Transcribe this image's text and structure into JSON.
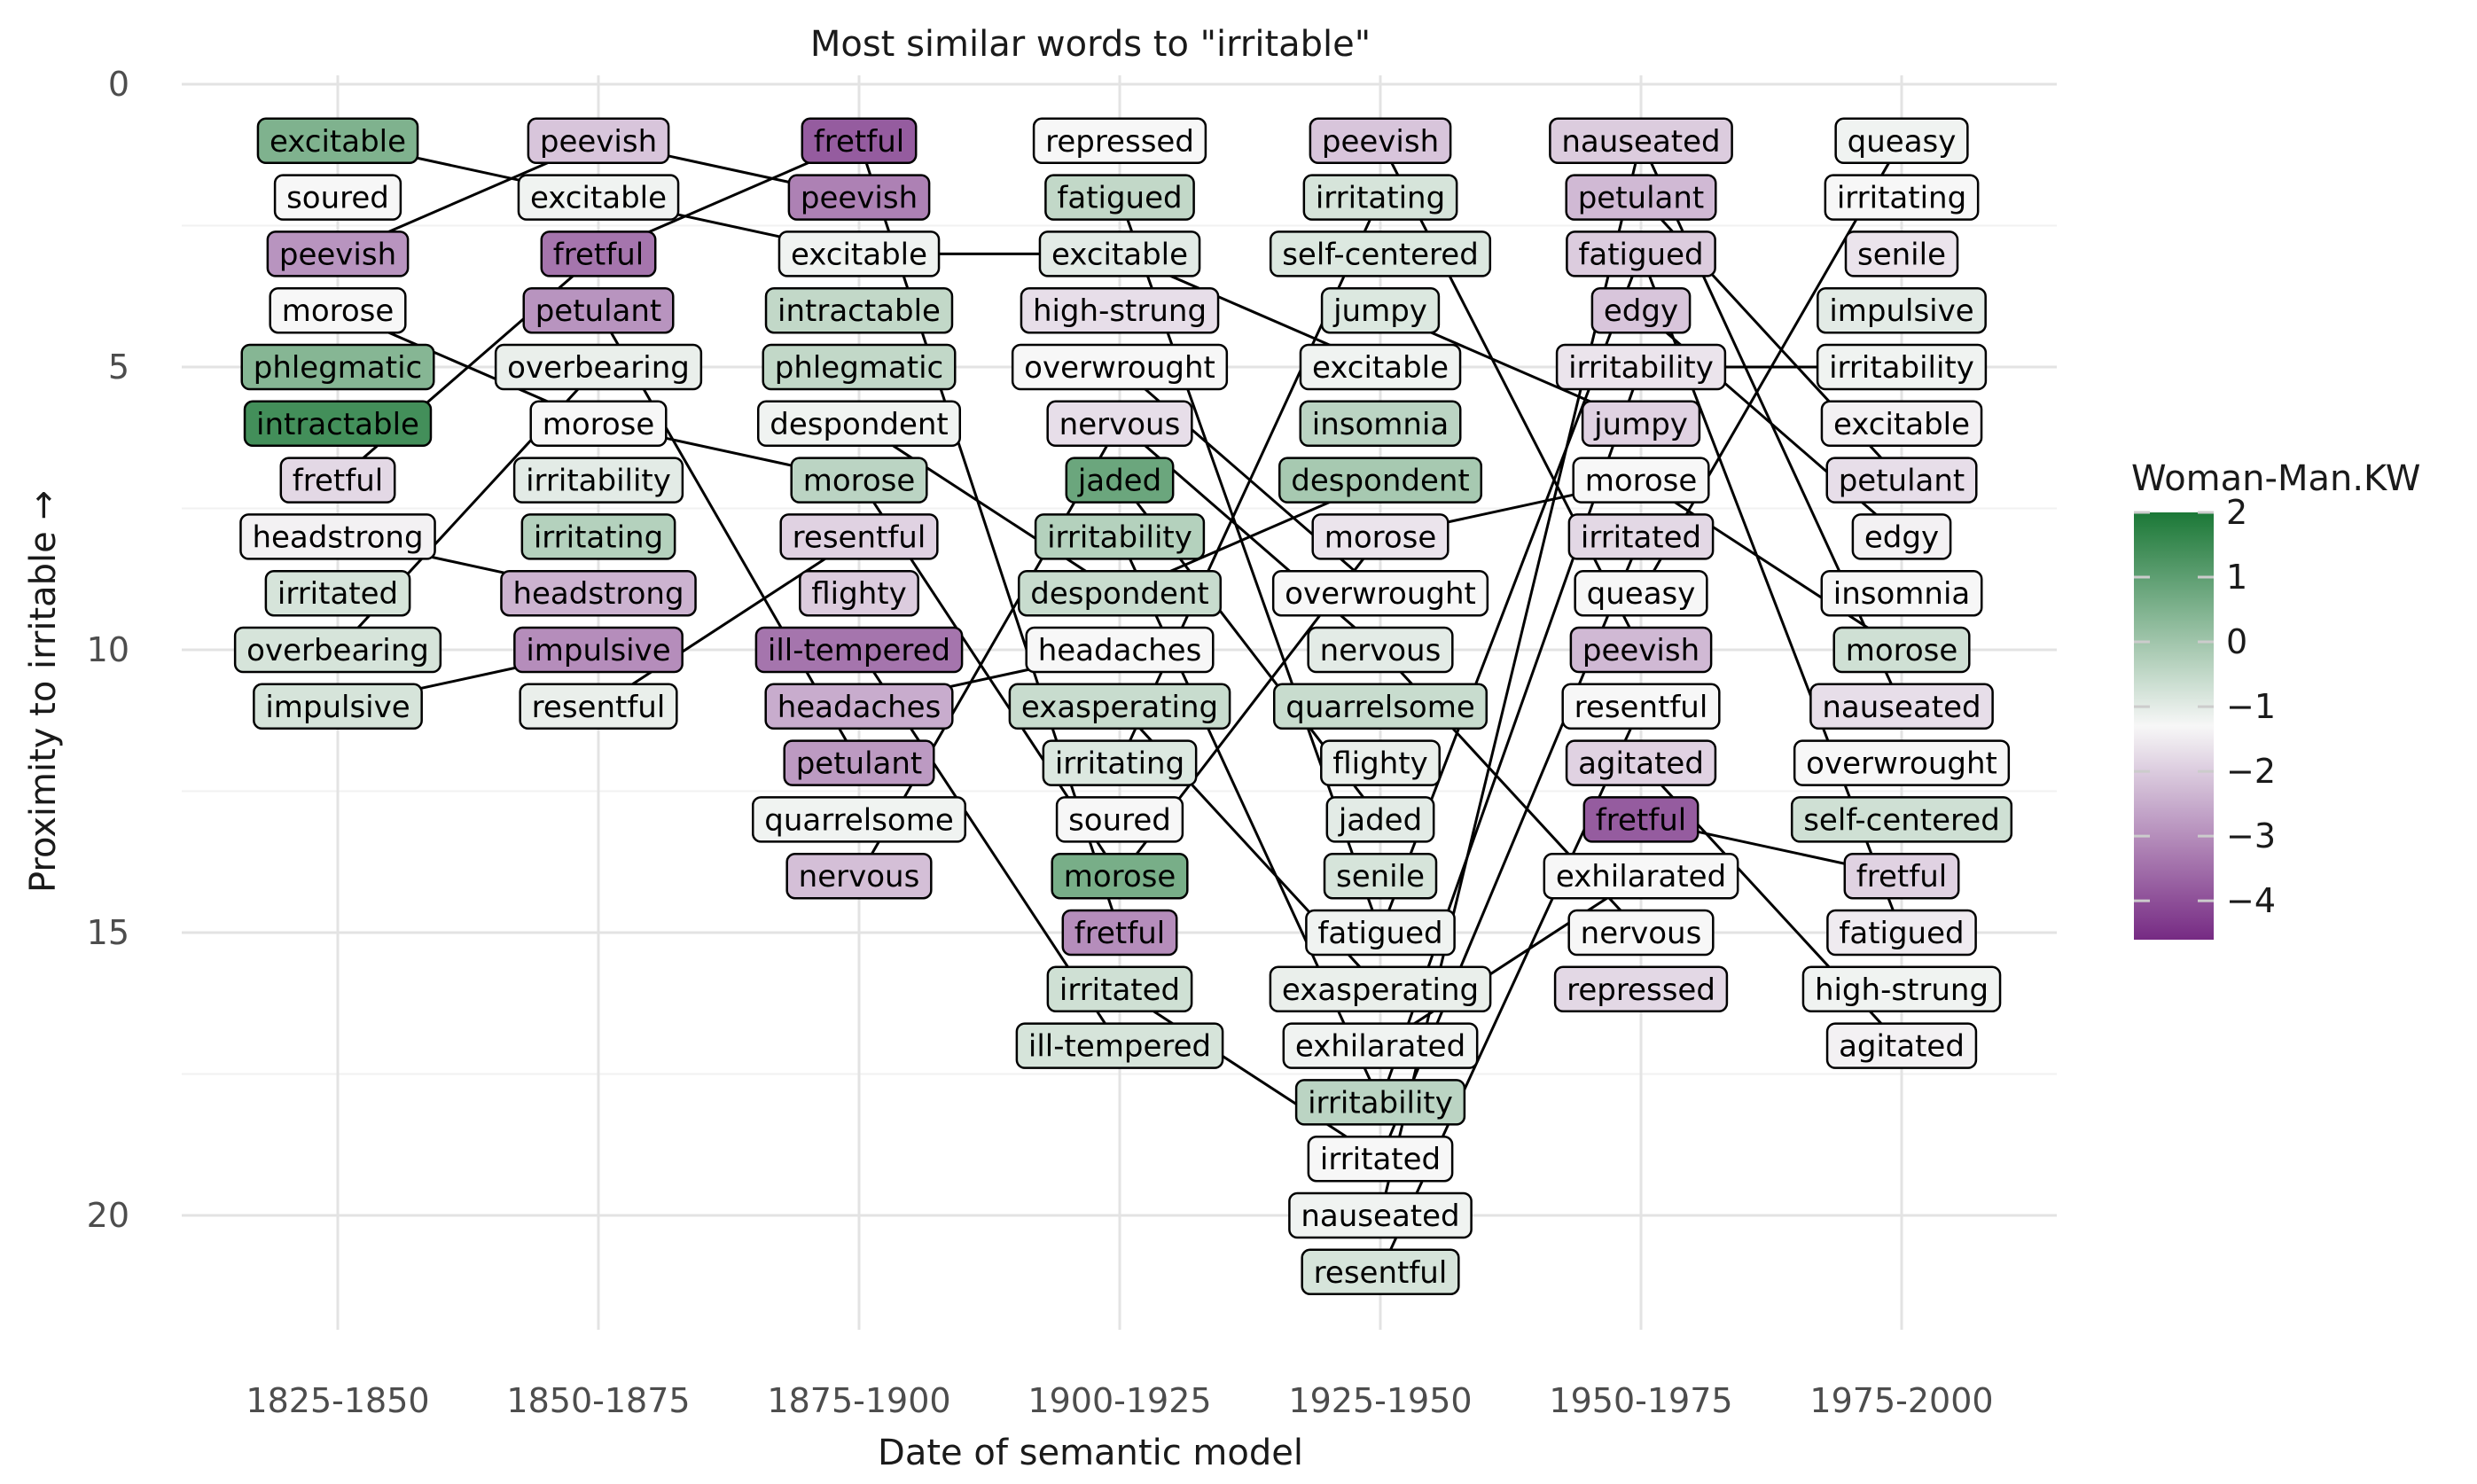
{
  "chart_data": {
    "type": "bump",
    "title": "Most similar words to \"irritable\"",
    "xlabel": "Date of semantic model",
    "ylabel": "Proximity to irritable →",
    "ylim": [
      0,
      22
    ],
    "yticks": [
      0,
      5,
      10,
      15,
      20
    ],
    "grid": true,
    "categories": [
      "1825-1850",
      "1850-1875",
      "1875-1900",
      "1900-1925",
      "1925-1950",
      "1950-1975",
      "1975-2000"
    ],
    "color_scale": {
      "title": "Woman-Man.KW",
      "min": -4.6,
      "max": 2,
      "ticks": [
        "2",
        "1",
        "0",
        "−1",
        "−2",
        "−3",
        "−4"
      ],
      "tick_values": [
        2,
        1,
        0,
        -1,
        -2,
        -3,
        -4
      ],
      "low_color": "#762a83",
      "mid_color": "#f7f7f7",
      "high_color": "#1b7837",
      "midpoint": -1.3,
      "legend_position": "right"
    },
    "columns": [
      {
        "period": "1825-1850",
        "words": [
          {
            "word": "excitable",
            "rank": 1,
            "value": 0.5
          },
          {
            "word": "soured",
            "rank": 2,
            "value": -1.3
          },
          {
            "word": "peevish",
            "rank": 3,
            "value": -2.9
          },
          {
            "word": "morose",
            "rank": 4,
            "value": -1.3
          },
          {
            "word": "phlegmatic",
            "rank": 5,
            "value": 0.4
          },
          {
            "word": "intractable",
            "rank": 6,
            "value": 1.4
          },
          {
            "word": "fretful",
            "rank": 7,
            "value": -1.8
          },
          {
            "word": "headstrong",
            "rank": 8,
            "value": -1.4
          },
          {
            "word": "irritated",
            "rank": 9,
            "value": -0.8
          },
          {
            "word": "overbearing",
            "rank": 10,
            "value": -0.8
          },
          {
            "word": "impulsive",
            "rank": 11,
            "value": -0.8
          }
        ]
      },
      {
        "period": "1850-1875",
        "words": [
          {
            "word": "peevish",
            "rank": 1,
            "value": -2.1
          },
          {
            "word": "excitable",
            "rank": 2,
            "value": -1.2
          },
          {
            "word": "fretful",
            "rank": 3,
            "value": -3.4
          },
          {
            "word": "petulant",
            "rank": 4,
            "value": -2.9
          },
          {
            "word": "overbearing",
            "rank": 5,
            "value": -1.1
          },
          {
            "word": "morose",
            "rank": 6,
            "value": -1.3
          },
          {
            "word": "irritability",
            "rank": 7,
            "value": -1.0
          },
          {
            "word": "irritating",
            "rank": 8,
            "value": -0.3
          },
          {
            "word": "headstrong",
            "rank": 9,
            "value": -2.4
          },
          {
            "word": "impulsive",
            "rank": 10,
            "value": -3.0
          },
          {
            "word": "resentful",
            "rank": 11,
            "value": -1.1
          }
        ]
      },
      {
        "period": "1875-1900",
        "words": [
          {
            "word": "fretful",
            "rank": 1,
            "value": -3.8
          },
          {
            "word": "peevish",
            "rank": 2,
            "value": -3.2
          },
          {
            "word": "excitable",
            "rank": 3,
            "value": -1.2
          },
          {
            "word": "intractable",
            "rank": 4,
            "value": -0.5
          },
          {
            "word": "phlegmatic",
            "rank": 5,
            "value": -0.5
          },
          {
            "word": "despondent",
            "rank": 6,
            "value": -1.2
          },
          {
            "word": "morose",
            "rank": 7,
            "value": -0.4
          },
          {
            "word": "resentful",
            "rank": 8,
            "value": -1.9
          },
          {
            "word": "flighty",
            "rank": 9,
            "value": -2.0
          },
          {
            "word": "ill-tempered",
            "rank": 10,
            "value": -3.4
          },
          {
            "word": "headaches",
            "rank": 11,
            "value": -2.5
          },
          {
            "word": "petulant",
            "rank": 12,
            "value": -2.8
          },
          {
            "word": "quarrelsome",
            "rank": 13,
            "value": -1.2
          },
          {
            "word": "nervous",
            "rank": 14,
            "value": -2.2
          }
        ]
      },
      {
        "period": "1900-1925",
        "words": [
          {
            "word": "repressed",
            "rank": 1,
            "value": -1.3
          },
          {
            "word": "fatigued",
            "rank": 2,
            "value": -0.5
          },
          {
            "word": "excitable",
            "rank": 3,
            "value": -1.0
          },
          {
            "word": "high-strung",
            "rank": 4,
            "value": -1.7
          },
          {
            "word": "overwrought",
            "rank": 5,
            "value": -1.3
          },
          {
            "word": "nervous",
            "rank": 6,
            "value": -1.7
          },
          {
            "word": "jaded",
            "rank": 7,
            "value": 0.8
          },
          {
            "word": "irritability",
            "rank": 8,
            "value": -0.3
          },
          {
            "word": "despondent",
            "rank": 9,
            "value": -0.6
          },
          {
            "word": "headaches",
            "rank": 10,
            "value": -1.3
          },
          {
            "word": "exasperating",
            "rank": 11,
            "value": -0.6
          },
          {
            "word": "irritating",
            "rank": 12,
            "value": -0.9
          },
          {
            "word": "soured",
            "rank": 13,
            "value": -1.3
          },
          {
            "word": "morose",
            "rank": 14,
            "value": 0.6
          },
          {
            "word": "fretful",
            "rank": 15,
            "value": -3.0
          },
          {
            "word": "irritated",
            "rank": 16,
            "value": -0.7
          },
          {
            "word": "ill-tempered",
            "rank": 17,
            "value": -0.8
          }
        ]
      },
      {
        "period": "1925-1950",
        "words": [
          {
            "word": "peevish",
            "rank": 1,
            "value": -2.1
          },
          {
            "word": "irritating",
            "rank": 2,
            "value": -0.8
          },
          {
            "word": "self-centered",
            "rank": 3,
            "value": -0.9
          },
          {
            "word": "jumpy",
            "rank": 4,
            "value": -0.9
          },
          {
            "word": "excitable",
            "rank": 5,
            "value": -1.2
          },
          {
            "word": "insomnia",
            "rank": 6,
            "value": -0.4
          },
          {
            "word": "despondent",
            "rank": 7,
            "value": -0.1
          },
          {
            "word": "morose",
            "rank": 8,
            "value": -1.6
          },
          {
            "word": "overwrought",
            "rank": 9,
            "value": -1.3
          },
          {
            "word": "nervous",
            "rank": 10,
            "value": -1.0
          },
          {
            "word": "quarrelsome",
            "rank": 11,
            "value": -0.6
          },
          {
            "word": "flighty",
            "rank": 12,
            "value": -1.1
          },
          {
            "word": "jaded",
            "rank": 13,
            "value": -1.0
          },
          {
            "word": "senile",
            "rank": 14,
            "value": -0.8
          },
          {
            "word": "fatigued",
            "rank": 15,
            "value": -1.2
          },
          {
            "word": "exasperating",
            "rank": 16,
            "value": -1.1
          },
          {
            "word": "exhilarated",
            "rank": 17,
            "value": -1.2
          },
          {
            "word": "irritability",
            "rank": 18,
            "value": -0.4
          },
          {
            "word": "irritated",
            "rank": 19,
            "value": -1.3
          },
          {
            "word": "nauseated",
            "rank": 20,
            "value": -1.2
          },
          {
            "word": "resentful",
            "rank": 21,
            "value": -0.8
          }
        ]
      },
      {
        "period": "1950-1975",
        "words": [
          {
            "word": "nauseated",
            "rank": 1,
            "value": -2.0
          },
          {
            "word": "petulant",
            "rank": 2,
            "value": -2.3
          },
          {
            "word": "fatigued",
            "rank": 3,
            "value": -2.0
          },
          {
            "word": "edgy",
            "rank": 4,
            "value": -2.1
          },
          {
            "word": "irritability",
            "rank": 5,
            "value": -1.6
          },
          {
            "word": "jumpy",
            "rank": 6,
            "value": -1.9
          },
          {
            "word": "morose",
            "rank": 7,
            "value": -1.3
          },
          {
            "word": "irritated",
            "rank": 8,
            "value": -1.8
          },
          {
            "word": "queasy",
            "rank": 9,
            "value": -1.3
          },
          {
            "word": "peevish",
            "rank": 10,
            "value": -2.3
          },
          {
            "word": "resentful",
            "rank": 11,
            "value": -1.3
          },
          {
            "word": "agitated",
            "rank": 12,
            "value": -1.9
          },
          {
            "word": "fretful",
            "rank": 13,
            "value": -3.8
          },
          {
            "word": "exhilarated",
            "rank": 14,
            "value": -1.3
          },
          {
            "word": "nervous",
            "rank": 15,
            "value": -1.3
          },
          {
            "word": "repressed",
            "rank": 16,
            "value": -1.8
          }
        ]
      },
      {
        "period": "1975-2000",
        "words": [
          {
            "word": "queasy",
            "rank": 1,
            "value": -1.2
          },
          {
            "word": "irritating",
            "rank": 2,
            "value": -1.3
          },
          {
            "word": "senile",
            "rank": 3,
            "value": -1.6
          },
          {
            "word": "impulsive",
            "rank": 4,
            "value": -1.0
          },
          {
            "word": "irritability",
            "rank": 5,
            "value": -1.2
          },
          {
            "word": "excitable",
            "rank": 6,
            "value": -1.4
          },
          {
            "word": "petulant",
            "rank": 7,
            "value": -1.7
          },
          {
            "word": "edgy",
            "rank": 8,
            "value": -1.4
          },
          {
            "word": "insomnia",
            "rank": 9,
            "value": -1.3
          },
          {
            "word": "morose",
            "rank": 10,
            "value": -0.7
          },
          {
            "word": "nauseated",
            "rank": 11,
            "value": -1.7
          },
          {
            "word": "overwrought",
            "rank": 12,
            "value": -1.3
          },
          {
            "word": "self-centered",
            "rank": 13,
            "value": -0.7
          },
          {
            "word": "fretful",
            "rank": 14,
            "value": -1.9
          },
          {
            "word": "fatigued",
            "rank": 15,
            "value": -1.5
          },
          {
            "word": "high-strung",
            "rank": 16,
            "value": -1.2
          },
          {
            "word": "agitated",
            "rank": 17,
            "value": -1.4
          }
        ]
      }
    ]
  }
}
